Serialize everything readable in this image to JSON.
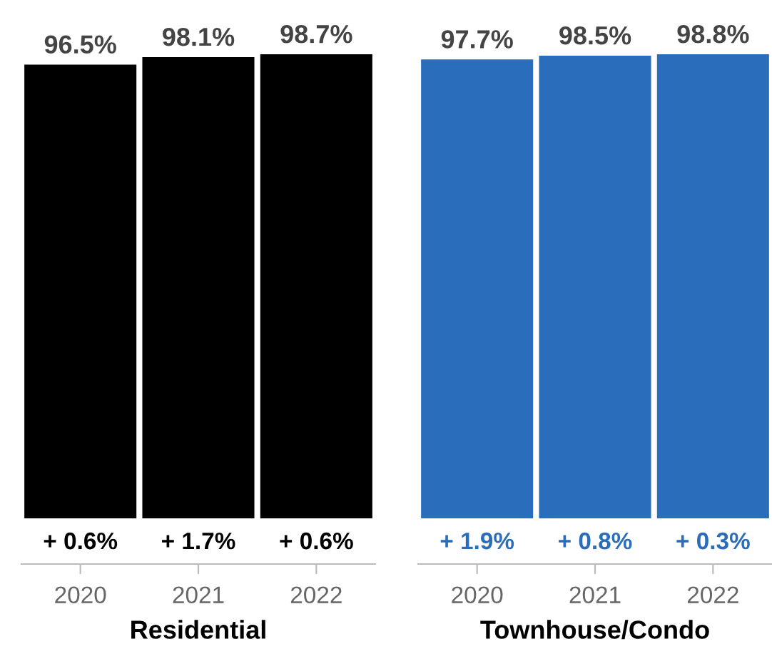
{
  "chart_data": [
    {
      "type": "bar",
      "xlabel": "Residential",
      "categories": [
        "2020",
        "2021",
        "2022"
      ],
      "values": [
        96.5,
        98.1,
        98.7
      ],
      "value_labels": [
        "96.5%",
        "98.1%",
        "98.7%"
      ],
      "color": "#000000",
      "annotations": [
        {
          "text": "+ 0.6%",
          "x": "2020",
          "y": 0
        },
        {
          "text": "+ 1.7%",
          "x": "2021",
          "y": 0
        },
        {
          "text": "+ 0.6%",
          "x": "2022",
          "y": 0
        }
      ]
    },
    {
      "type": "bar",
      "xlabel": "Townhouse/Condo",
      "categories": [
        "2020",
        "2021",
        "2022"
      ],
      "values": [
        97.7,
        98.5,
        98.8
      ],
      "value_labels": [
        "97.7%",
        "98.5%",
        "98.8%"
      ],
      "color": "#2a6ebb",
      "annotations": [
        {
          "text": "+ 1.9%",
          "x": "2020",
          "y": 0
        },
        {
          "text": "+ 0.8%",
          "x": "2021",
          "y": 0
        },
        {
          "text": "+ 0.3%",
          "x": "2022",
          "y": 0
        }
      ]
    }
  ]
}
